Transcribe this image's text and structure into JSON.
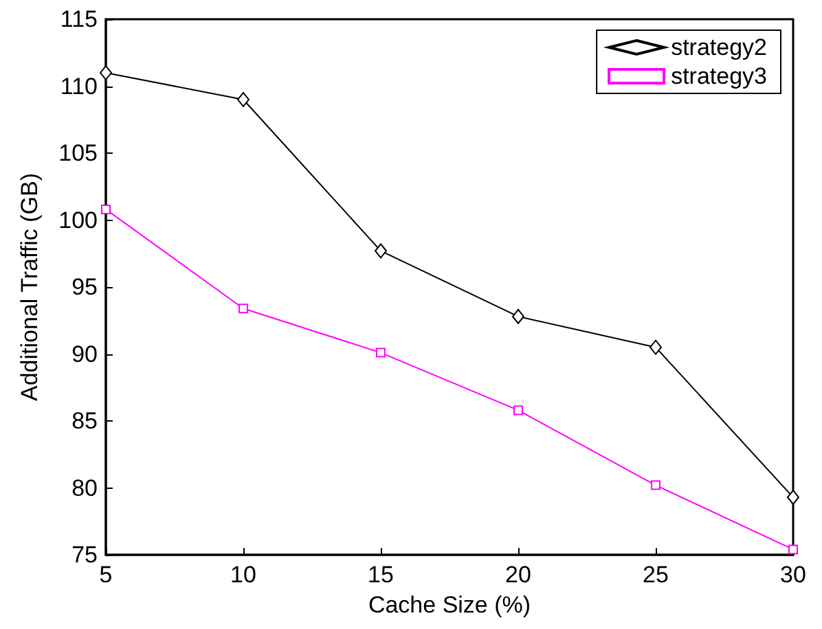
{
  "chart_data": {
    "type": "line",
    "xlabel": "Cache Size (%)",
    "ylabel": "Additional Traffic (GB)",
    "x": [
      5,
      10,
      15,
      20,
      25,
      30
    ],
    "series": [
      {
        "name": "strategy2",
        "color": "#000000",
        "marker": "diamond",
        "values": [
          111.0,
          109.0,
          97.7,
          92.8,
          90.5,
          79.3
        ]
      },
      {
        "name": "strategy3",
        "color": "#ff00ff",
        "marker": "square",
        "values": [
          100.8,
          93.4,
          90.1,
          85.8,
          80.2,
          75.4
        ]
      }
    ],
    "xlim": [
      5,
      30
    ],
    "xticks": [
      5,
      10,
      15,
      20,
      25,
      30
    ],
    "ylim": [
      75,
      115
    ],
    "yticks": [
      75,
      80,
      85,
      90,
      95,
      100,
      105,
      110,
      115
    ],
    "grid": false,
    "legend": "top right",
    "line_style": "solid"
  }
}
